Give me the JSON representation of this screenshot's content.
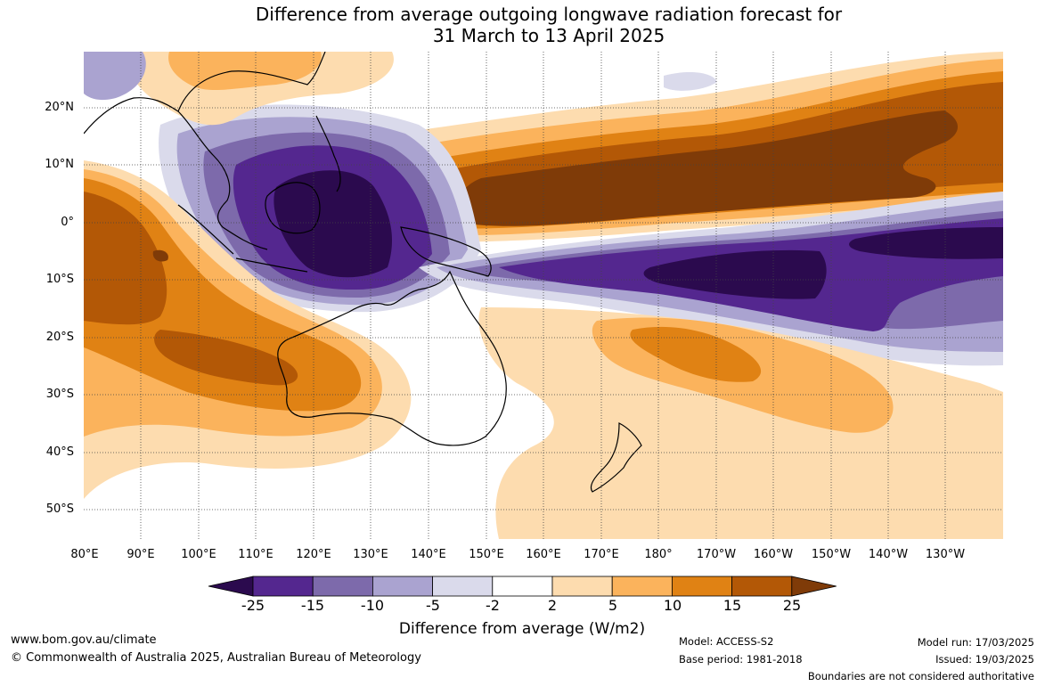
{
  "title": {
    "line1": "Difference from average outgoing longwave radiation forecast for",
    "line2": "31 March to 13 April 2025"
  },
  "map": {
    "lat_labels": [
      "20°N",
      "10°N",
      "0°",
      "10°S",
      "20°S",
      "30°S",
      "40°S",
      "50°S"
    ],
    "lon_labels": [
      "80°E",
      "90°E",
      "100°E",
      "110°E",
      "120°E",
      "130°E",
      "140°E",
      "150°E",
      "160°E",
      "170°E",
      "180°",
      "170°W",
      "160°W",
      "150°W",
      "140°W",
      "130°W"
    ],
    "graticule": "dotted"
  },
  "colorbar": {
    "tick_labels": [
      "-25",
      "-15",
      "-10",
      "-5",
      "-2",
      "2",
      "5",
      "10",
      "15",
      "25"
    ],
    "bin_colors": [
      "#2b0a4e",
      "#54278f",
      "#7d6aab",
      "#aaa3d0",
      "#dadaeb",
      "#ffffff",
      "#fddcaf",
      "#fbb35c",
      "#e08214",
      "#b35806",
      "#7f3b08"
    ],
    "title": "Difference from average (W/m2)",
    "extend": "both"
  },
  "footer": {
    "website": "www.bom.gov.au/climate",
    "copyright": "© Commonwealth of Australia 2025, Australian Bureau of Meteorology",
    "model": "Model: ACCESS-S2",
    "base_period": "Base period: 1981-2018",
    "model_run": "Model run: 17/03/2025",
    "issued": "Issued: 19/03/2025",
    "disclaimer": "Boundaries are not considered authoritative"
  }
}
